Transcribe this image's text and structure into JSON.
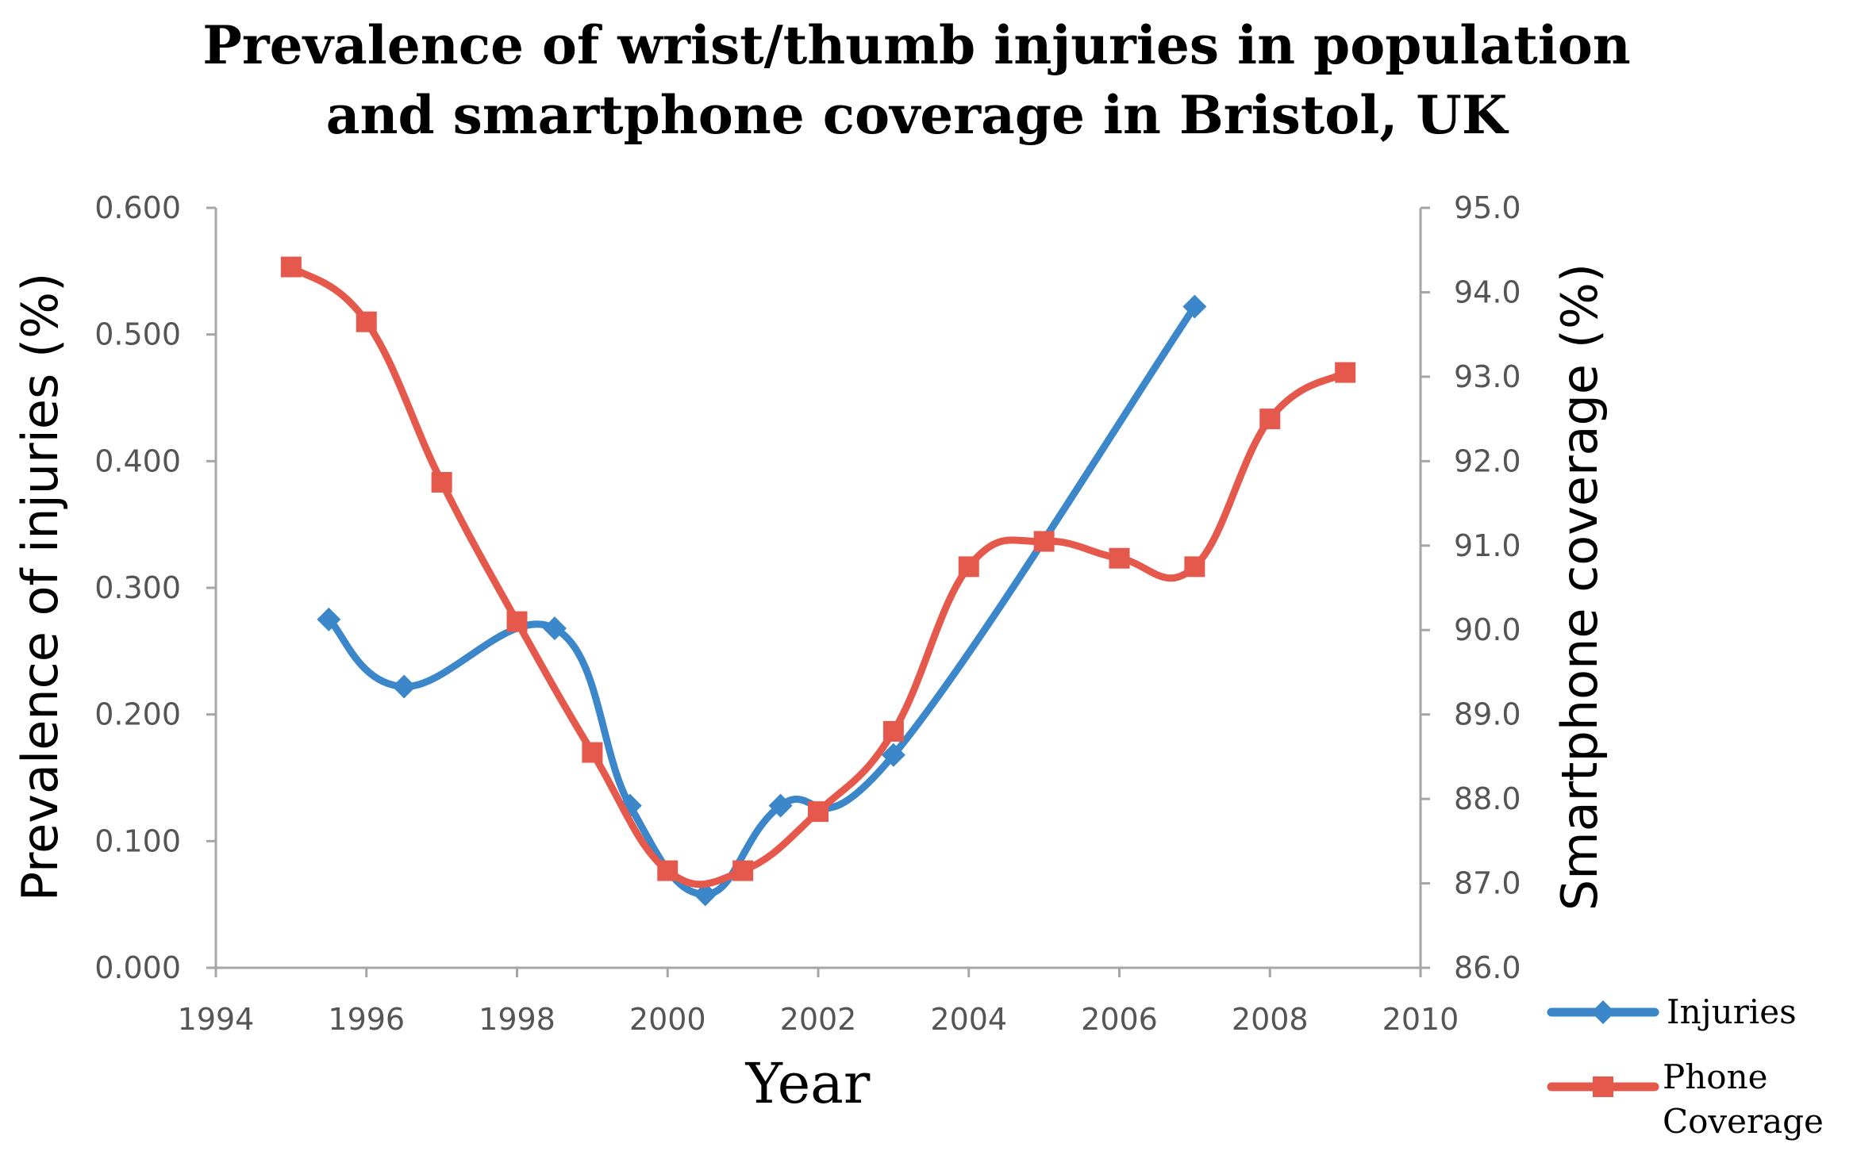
{
  "chart_data": {
    "type": "line",
    "title_lines": [
      "Prevalence of wrist/thumb injuries in population",
      "and smartphone coverage in Bristol, UK"
    ],
    "xlabel": "Year",
    "ylabel_left": "Prevalence of injuries (%)",
    "ylabel_right": "Smartphone coverage (%)",
    "xlim": [
      1994,
      2010
    ],
    "x_ticks": [
      1994,
      1996,
      1998,
      2000,
      2002,
      2004,
      2006,
      2008,
      2010
    ],
    "ylim_left": [
      0,
      0.6
    ],
    "y_ticks_left": [
      "0.000",
      "0.100",
      "0.200",
      "0.300",
      "0.400",
      "0.500",
      "0.600"
    ],
    "ylim_right": [
      86,
      95
    ],
    "y_ticks_right": [
      "86.0",
      "87.0",
      "88.0",
      "89.0",
      "90.0",
      "91.0",
      "92.0",
      "93.0",
      "94.0",
      "95.0"
    ],
    "grid": false,
    "legend_position": "bottom-right",
    "series": [
      {
        "name": "Injuries",
        "axis": "left",
        "color": "#3b87c9",
        "marker": "diamond",
        "x": [
          1995.5,
          1996.5,
          1998.5,
          1999.5,
          2000.5,
          2001.5,
          2003.0,
          2007.0
        ],
        "y": [
          0.275,
          0.222,
          0.268,
          0.128,
          0.058,
          0.128,
          0.168,
          0.522
        ]
      },
      {
        "name": "Phone Coverage",
        "axis": "right",
        "color": "#e5594c",
        "marker": "square",
        "x": [
          1995,
          1996,
          1997,
          1998,
          1999,
          2000,
          2001,
          2002,
          2003,
          2004,
          2005,
          2006,
          2007,
          2008,
          2009
        ],
        "y": [
          94.3,
          93.65,
          91.75,
          90.1,
          88.55,
          87.15,
          87.15,
          87.85,
          88.8,
          90.75,
          91.05,
          90.85,
          90.75,
          92.5,
          93.05
        ]
      }
    ],
    "legend": [
      {
        "label": "Injuries",
        "series": 0
      },
      {
        "label": "Phone Coverage",
        "label_lines": [
          "Phone",
          "Coverage"
        ],
        "series": 1
      }
    ]
  }
}
